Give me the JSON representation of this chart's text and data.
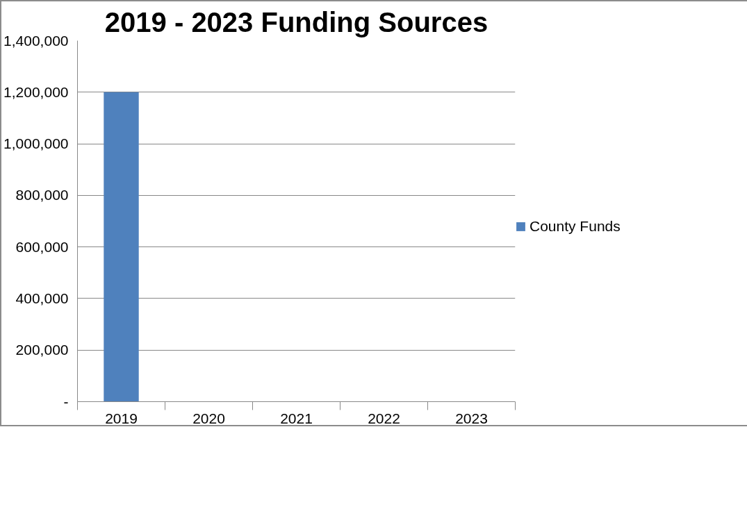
{
  "chart_data": {
    "type": "bar",
    "title": "2019 - 2023 Funding Sources",
    "categories": [
      "2019",
      "2020",
      "2021",
      "2022",
      "2023"
    ],
    "series": [
      {
        "name": "County Funds",
        "color": "#4f81bd",
        "values": [
          1200000,
          null,
          null,
          null,
          null
        ]
      }
    ],
    "ylim": [
      0,
      1400000
    ],
    "yticks": [
      {
        "value": 0,
        "label": "-"
      },
      {
        "value": 200000,
        "label": "200,000"
      },
      {
        "value": 400000,
        "label": "400,000"
      },
      {
        "value": 600000,
        "label": "600,000"
      },
      {
        "value": 800000,
        "label": "800,000"
      },
      {
        "value": 1000000,
        "label": "1,000,000"
      },
      {
        "value": 1200000,
        "label": "1,200,000"
      },
      {
        "value": 1400000,
        "label": "1,400,000"
      }
    ],
    "grid": "y",
    "legend": "right"
  }
}
